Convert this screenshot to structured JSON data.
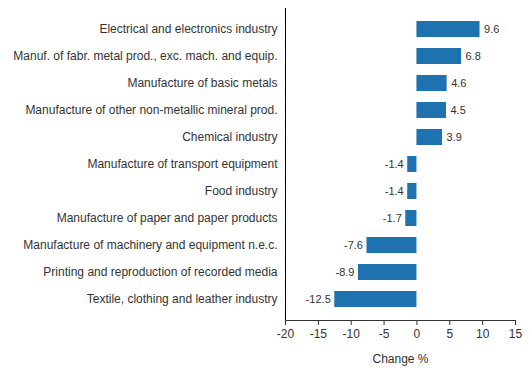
{
  "chart_data": {
    "type": "bar",
    "orientation": "horizontal",
    "categories": [
      "Electrical and electronics industry",
      "Manuf. of fabr. metal prod., exc. mach. and equip.",
      "Manufacture of basic metals",
      "Manufacture of other non-metallic mineral prod.",
      "Chemical industry",
      "Manufacture of transport equipment",
      "Food industry",
      "Manufacture of paper and paper products",
      "Manufacture of machinery and equipment n.e.c.",
      "Printing and reproduction of recorded media",
      "Textile, clothing and leather industry"
    ],
    "values": [
      9.6,
      6.8,
      4.6,
      4.5,
      3.9,
      -1.4,
      -1.4,
      -1.7,
      -7.6,
      -8.9,
      -12.5
    ],
    "color": "#1f72b0",
    "x_label": "Change %",
    "xlim": [
      -20,
      15
    ],
    "xticks": [
      -20,
      -15,
      -10,
      -5,
      0,
      5,
      10,
      15
    ],
    "grid": false,
    "data_labels": true
  }
}
